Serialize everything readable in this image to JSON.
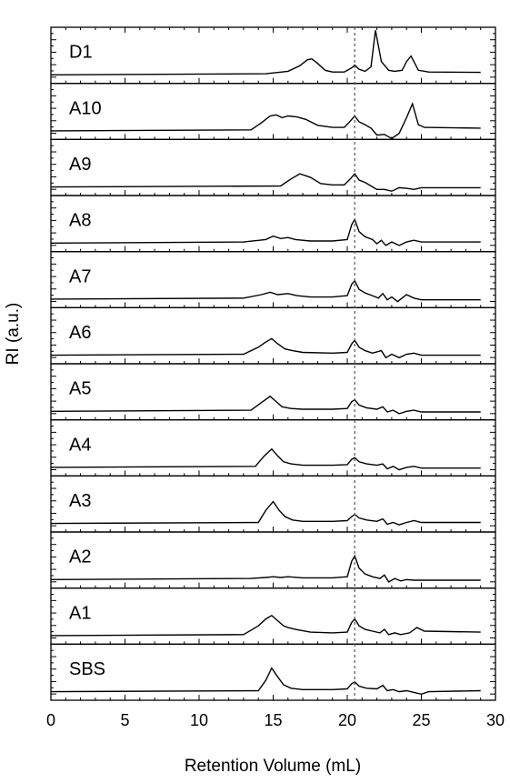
{
  "chart_data": {
    "type": "line",
    "xlabel": "Retention Volume (mL)",
    "ylabel": "RI (a.u.)",
    "xlim": [
      0,
      30
    ],
    "xticks": [
      0,
      5,
      10,
      15,
      20,
      25,
      30
    ],
    "vline_x": 20.5,
    "panel_names": [
      "D1",
      "A10",
      "A9",
      "A8",
      "A7",
      "A6",
      "A5",
      "A4",
      "A3",
      "A2",
      "A1",
      "SBS"
    ],
    "panels": [
      {
        "name": "D1",
        "points": [
          [
            0,
            0.02
          ],
          [
            14.5,
            0.05
          ],
          [
            16,
            0.12
          ],
          [
            16.8,
            0.28
          ],
          [
            17.3,
            0.45
          ],
          [
            17.6,
            0.48
          ],
          [
            18,
            0.35
          ],
          [
            18.5,
            0.15
          ],
          [
            19,
            0.1
          ],
          [
            19.8,
            0.1
          ],
          [
            20.3,
            0.22
          ],
          [
            20.5,
            0.3
          ],
          [
            20.8,
            0.18
          ],
          [
            21.2,
            0.12
          ],
          [
            21.6,
            0.25
          ],
          [
            21.9,
            1.3
          ],
          [
            22.3,
            0.4
          ],
          [
            22.8,
            0.15
          ],
          [
            23.2,
            0.12
          ],
          [
            23.7,
            0.15
          ],
          [
            24,
            0.4
          ],
          [
            24.3,
            0.56
          ],
          [
            24.5,
            0.4
          ],
          [
            24.8,
            0.15
          ],
          [
            25.5,
            0.1
          ],
          [
            29,
            0.09
          ]
        ]
      },
      {
        "name": "A10",
        "points": [
          [
            0,
            0.02
          ],
          [
            13.5,
            0.05
          ],
          [
            14.2,
            0.25
          ],
          [
            14.8,
            0.45
          ],
          [
            15.2,
            0.48
          ],
          [
            15.6,
            0.4
          ],
          [
            16,
            0.45
          ],
          [
            16.6,
            0.42
          ],
          [
            17.2,
            0.35
          ],
          [
            18,
            0.18
          ],
          [
            19,
            0.12
          ],
          [
            19.8,
            0.12
          ],
          [
            20.2,
            0.3
          ],
          [
            20.5,
            0.45
          ],
          [
            20.8,
            0.28
          ],
          [
            21.2,
            0.2
          ],
          [
            21.6,
            0.1
          ],
          [
            22,
            -0.1
          ],
          [
            22.5,
            -0.08
          ],
          [
            23,
            -0.2
          ],
          [
            23.5,
            -0.05
          ],
          [
            24,
            0.4
          ],
          [
            24.4,
            0.8
          ],
          [
            24.8,
            0.2
          ],
          [
            25.2,
            0.12
          ],
          [
            29,
            0.1
          ]
        ]
      },
      {
        "name": "A9",
        "points": [
          [
            0,
            0.02
          ],
          [
            15.5,
            0.05
          ],
          [
            16.2,
            0.25
          ],
          [
            16.8,
            0.4
          ],
          [
            17.5,
            0.3
          ],
          [
            18.2,
            0.12
          ],
          [
            19,
            0.08
          ],
          [
            19.8,
            0.08
          ],
          [
            20.2,
            0.25
          ],
          [
            20.5,
            0.4
          ],
          [
            20.8,
            0.22
          ],
          [
            21.2,
            0.15
          ],
          [
            21.6,
            0.05
          ],
          [
            22,
            -0.05
          ],
          [
            22.5,
            -0.05
          ],
          [
            23,
            -0.1
          ],
          [
            23.5,
            0.0
          ],
          [
            24,
            -0.02
          ],
          [
            24.5,
            -0.05
          ],
          [
            25,
            0.0
          ],
          [
            29,
            0.0
          ]
        ]
      },
      {
        "name": "A8",
        "points": [
          [
            0,
            0.02
          ],
          [
            13,
            0.05
          ],
          [
            14.5,
            0.12
          ],
          [
            15,
            0.22
          ],
          [
            15.5,
            0.15
          ],
          [
            16,
            0.18
          ],
          [
            16.5,
            0.12
          ],
          [
            17.5,
            0.08
          ],
          [
            19,
            0.08
          ],
          [
            20,
            0.12
          ],
          [
            20.3,
            0.55
          ],
          [
            20.5,
            0.7
          ],
          [
            20.8,
            0.35
          ],
          [
            21.2,
            0.2
          ],
          [
            21.7,
            0.12
          ],
          [
            22,
            0.0
          ],
          [
            22.3,
            0.1
          ],
          [
            22.6,
            -0.05
          ],
          [
            23,
            0.05
          ],
          [
            23.5,
            -0.05
          ],
          [
            24,
            0.05
          ],
          [
            24.5,
            0.1
          ],
          [
            25,
            0.05
          ],
          [
            29,
            0.05
          ]
        ]
      },
      {
        "name": "A7",
        "points": [
          [
            0,
            0.02
          ],
          [
            13,
            0.05
          ],
          [
            14.2,
            0.15
          ],
          [
            14.8,
            0.22
          ],
          [
            15.3,
            0.15
          ],
          [
            16,
            0.18
          ],
          [
            16.6,
            0.12
          ],
          [
            17.5,
            0.08
          ],
          [
            19,
            0.08
          ],
          [
            20,
            0.12
          ],
          [
            20.3,
            0.45
          ],
          [
            20.5,
            0.55
          ],
          [
            20.8,
            0.3
          ],
          [
            21.2,
            0.2
          ],
          [
            21.7,
            0.12
          ],
          [
            22.1,
            0.05
          ],
          [
            22.4,
            0.18
          ],
          [
            22.7,
            0.0
          ],
          [
            23,
            0.08
          ],
          [
            23.4,
            -0.05
          ],
          [
            24,
            0.15
          ],
          [
            24.5,
            0.05
          ],
          [
            25,
            0.0
          ],
          [
            29,
            0.0
          ]
        ]
      },
      {
        "name": "A6",
        "points": [
          [
            0,
            0.02
          ],
          [
            13,
            0.05
          ],
          [
            14,
            0.25
          ],
          [
            14.5,
            0.4
          ],
          [
            14.9,
            0.5
          ],
          [
            15.3,
            0.35
          ],
          [
            15.8,
            0.2
          ],
          [
            16.3,
            0.15
          ],
          [
            17,
            0.1
          ],
          [
            19,
            0.08
          ],
          [
            20,
            0.1
          ],
          [
            20.3,
            0.35
          ],
          [
            20.5,
            0.45
          ],
          [
            20.8,
            0.25
          ],
          [
            21.2,
            0.15
          ],
          [
            21.7,
            0.08
          ],
          [
            22.3,
            0.15
          ],
          [
            22.6,
            -0.05
          ],
          [
            23,
            0.05
          ],
          [
            23.5,
            -0.05
          ],
          [
            24,
            0.05
          ],
          [
            24.5,
            0.08
          ],
          [
            25,
            0.02
          ],
          [
            29,
            0.02
          ]
        ]
      },
      {
        "name": "A5",
        "points": [
          [
            0,
            0.02
          ],
          [
            13.5,
            0.05
          ],
          [
            14.3,
            0.3
          ],
          [
            14.8,
            0.45
          ],
          [
            15.2,
            0.3
          ],
          [
            15.6,
            0.15
          ],
          [
            16.2,
            0.1
          ],
          [
            17,
            0.08
          ],
          [
            19,
            0.08
          ],
          [
            20,
            0.1
          ],
          [
            20.3,
            0.3
          ],
          [
            20.5,
            0.35
          ],
          [
            20.8,
            0.2
          ],
          [
            21.3,
            0.12
          ],
          [
            22,
            0.08
          ],
          [
            22.4,
            0.15
          ],
          [
            22.7,
            0.0
          ],
          [
            23.1,
            0.05
          ],
          [
            23.5,
            -0.05
          ],
          [
            24,
            0.02
          ],
          [
            24.5,
            0.05
          ],
          [
            25,
            0.0
          ],
          [
            29,
            0.0
          ]
        ]
      },
      {
        "name": "A4",
        "points": [
          [
            0,
            0.02
          ],
          [
            13.8,
            0.05
          ],
          [
            14.4,
            0.35
          ],
          [
            14.9,
            0.55
          ],
          [
            15.3,
            0.35
          ],
          [
            15.7,
            0.18
          ],
          [
            16.2,
            0.12
          ],
          [
            17,
            0.08
          ],
          [
            19,
            0.08
          ],
          [
            20,
            0.1
          ],
          [
            20.3,
            0.25
          ],
          [
            20.5,
            0.3
          ],
          [
            20.8,
            0.18
          ],
          [
            21.3,
            0.12
          ],
          [
            22,
            0.08
          ],
          [
            22.4,
            0.12
          ],
          [
            22.7,
            -0.02
          ],
          [
            23.1,
            0.05
          ],
          [
            23.5,
            -0.05
          ],
          [
            24,
            0.02
          ],
          [
            24.5,
            0.05
          ],
          [
            25,
            0.0
          ],
          [
            29,
            0.0
          ]
        ]
      },
      {
        "name": "A3",
        "points": [
          [
            0,
            0.02
          ],
          [
            14,
            0.05
          ],
          [
            14.5,
            0.4
          ],
          [
            15,
            0.65
          ],
          [
            15.4,
            0.4
          ],
          [
            15.8,
            0.22
          ],
          [
            16.3,
            0.12
          ],
          [
            17,
            0.08
          ],
          [
            19,
            0.08
          ],
          [
            20,
            0.1
          ],
          [
            20.3,
            0.22
          ],
          [
            20.5,
            0.28
          ],
          [
            20.8,
            0.18
          ],
          [
            21.3,
            0.12
          ],
          [
            22,
            0.08
          ],
          [
            22.4,
            0.15
          ],
          [
            22.7,
            0.0
          ],
          [
            23.1,
            0.05
          ],
          [
            23.5,
            -0.02
          ],
          [
            24,
            0.05
          ],
          [
            24.5,
            0.1
          ],
          [
            25,
            0.05
          ],
          [
            29,
            0.05
          ]
        ]
      },
      {
        "name": "A2",
        "points": [
          [
            0,
            0.02
          ],
          [
            13.5,
            0.05
          ],
          [
            14.5,
            0.08
          ],
          [
            15,
            0.1
          ],
          [
            15.5,
            0.08
          ],
          [
            16,
            0.1
          ],
          [
            17,
            0.07
          ],
          [
            19,
            0.07
          ],
          [
            20,
            0.1
          ],
          [
            20.3,
            0.55
          ],
          [
            20.5,
            0.7
          ],
          [
            20.8,
            0.35
          ],
          [
            21.2,
            0.18
          ],
          [
            21.7,
            0.1
          ],
          [
            22.2,
            0.05
          ],
          [
            22.5,
            0.15
          ],
          [
            22.8,
            -0.05
          ],
          [
            23.2,
            0.05
          ],
          [
            23.6,
            -0.02
          ],
          [
            24,
            0.02
          ],
          [
            24.5,
            0.0
          ],
          [
            25,
            0.0
          ],
          [
            29,
            0.0
          ]
        ]
      },
      {
        "name": "A1",
        "points": [
          [
            0,
            0.02
          ],
          [
            13,
            0.05
          ],
          [
            14,
            0.3
          ],
          [
            14.5,
            0.5
          ],
          [
            14.9,
            0.6
          ],
          [
            15.3,
            0.45
          ],
          [
            15.7,
            0.3
          ],
          [
            16,
            0.25
          ],
          [
            16.5,
            0.2
          ],
          [
            17.5,
            0.12
          ],
          [
            19,
            0.1
          ],
          [
            20,
            0.12
          ],
          [
            20.3,
            0.4
          ],
          [
            20.5,
            0.5
          ],
          [
            20.8,
            0.3
          ],
          [
            21.2,
            0.2
          ],
          [
            21.7,
            0.15
          ],
          [
            22.2,
            0.1
          ],
          [
            22.5,
            0.2
          ],
          [
            22.8,
            0.05
          ],
          [
            23.2,
            0.1
          ],
          [
            23.6,
            0.05
          ],
          [
            24.2,
            0.1
          ],
          [
            24.7,
            0.25
          ],
          [
            25.2,
            0.15
          ],
          [
            29,
            0.12
          ]
        ]
      },
      {
        "name": "SBS",
        "points": [
          [
            0,
            0.02
          ],
          [
            14,
            0.05
          ],
          [
            14.5,
            0.35
          ],
          [
            14.9,
            0.7
          ],
          [
            15.3,
            0.45
          ],
          [
            15.7,
            0.22
          ],
          [
            16.2,
            0.12
          ],
          [
            17,
            0.08
          ],
          [
            19,
            0.08
          ],
          [
            20,
            0.1
          ],
          [
            20.3,
            0.25
          ],
          [
            20.5,
            0.3
          ],
          [
            20.8,
            0.18
          ],
          [
            21.3,
            0.12
          ],
          [
            22,
            0.1
          ],
          [
            22.4,
            0.2
          ],
          [
            22.7,
            0.05
          ],
          [
            23.1,
            0.08
          ],
          [
            23.5,
            0.02
          ],
          [
            24,
            0.05
          ],
          [
            24.5,
            0.0
          ],
          [
            25,
            -0.05
          ],
          [
            25.5,
            0.02
          ],
          [
            29,
            0.05
          ]
        ]
      }
    ]
  },
  "colors": {
    "line": "#000000",
    "vline": "#555555"
  }
}
